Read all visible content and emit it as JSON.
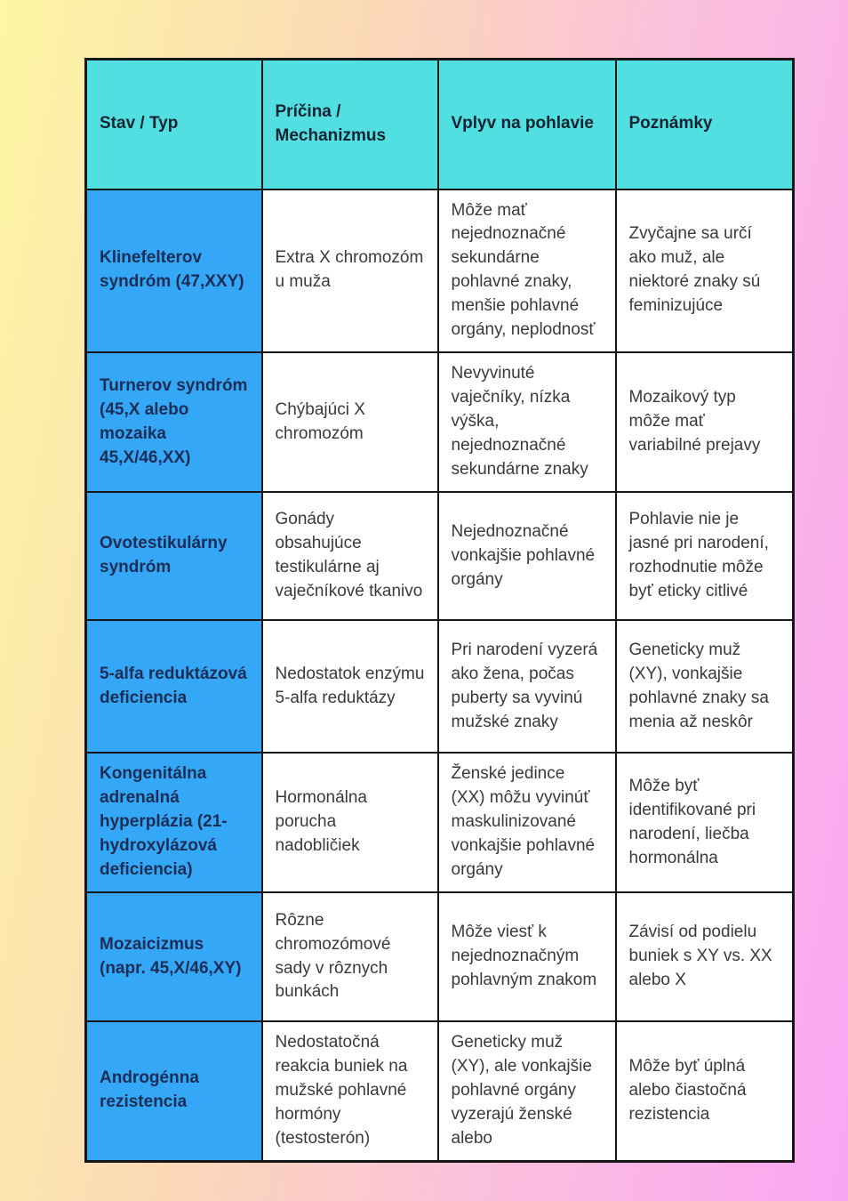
{
  "page": {
    "background_gradient": [
      "#fdf6a2",
      "#f9a6f3"
    ]
  },
  "table": {
    "colors": {
      "header_bg": "#52dfe2",
      "row_header_bg": "#35a7f7",
      "border": "#161616",
      "header_text": "#0f2430",
      "row_header_text": "#1a2e55",
      "body_text": "#3a3a3a"
    },
    "columns": [
      "Stav / Typ",
      "Príčina / Mechanizmus",
      "Vplyv na pohlavie",
      "Poznámky"
    ],
    "rows": [
      {
        "stav": "Klinefelterov syndróm (47,XXY)",
        "pricina": "Extra X chromozóm u muža",
        "vplyv": "Môže mať nejednoznačné sekundárne pohlavné znaky, menšie pohlavné orgány, neplodnosť",
        "poznamky": "Zvyčajne sa určí ako muž, ale niektoré znaky sú feminizujúce"
      },
      {
        "stav": "Turnerov syndróm (45,X alebo mozaika 45,X/46,XX)",
        "pricina": "Chýbajúci X chromozóm",
        "vplyv": "Nevyvinuté vaječníky, nízka výška, nejednoznačné sekundárne znaky",
        "poznamky": "Mozaikový typ môže mať variabilné prejavy"
      },
      {
        "stav": "Ovotestikulárny syndróm",
        "pricina": "Gonády obsahujúce testikulárne aj vaječníkové tkanivo",
        "vplyv": "Nejednoznačné vonkajšie pohlavné orgány",
        "poznamky": "Pohlavie nie je jasné pri narodení, rozhodnutie môže byť eticky citlivé"
      },
      {
        "stav": "5-alfa reduktázová deficiencia",
        "pricina": "Nedostatok enzýmu 5-alfa reduktázy",
        "vplyv": "Pri narodení vyzerá ako žena, počas puberty sa vyvinú mužské znaky",
        "poznamky": "Geneticky muž (XY), vonkajšie pohlavné znaky sa menia až neskôr"
      },
      {
        "stav": "Kongenitálna adrenalná hyperplázia (21-hydroxylázová deficiencia)",
        "pricina": "Hormonálna porucha nadobličiek",
        "vplyv": "Ženské jedince (XX) môžu vyvinúť maskulinizované vonkajšie pohlavné orgány",
        "poznamky": "Môže byť identifikované pri narodení, liečba hormonálna"
      },
      {
        "stav": "Mozaicizmus (napr. 45,X/46,XY)",
        "pricina": "Rôzne chromozómové sady v rôznych bunkách",
        "vplyv": "Môže viesť k nejednoznačným pohlavným znakom",
        "poznamky": "Závisí od podielu buniek s XY vs. XX alebo X"
      },
      {
        "stav": "Androgénna rezistencia",
        "pricina": "Nedostatočná reakcia buniek na mužské pohlavné hormóny (testosterón)",
        "vplyv": "Geneticky muž (XY), ale vonkajšie pohlavné orgány vyzerajú ženské alebo",
        "poznamky": "Môže byť úplná alebo čiastočná rezistencia"
      }
    ]
  }
}
